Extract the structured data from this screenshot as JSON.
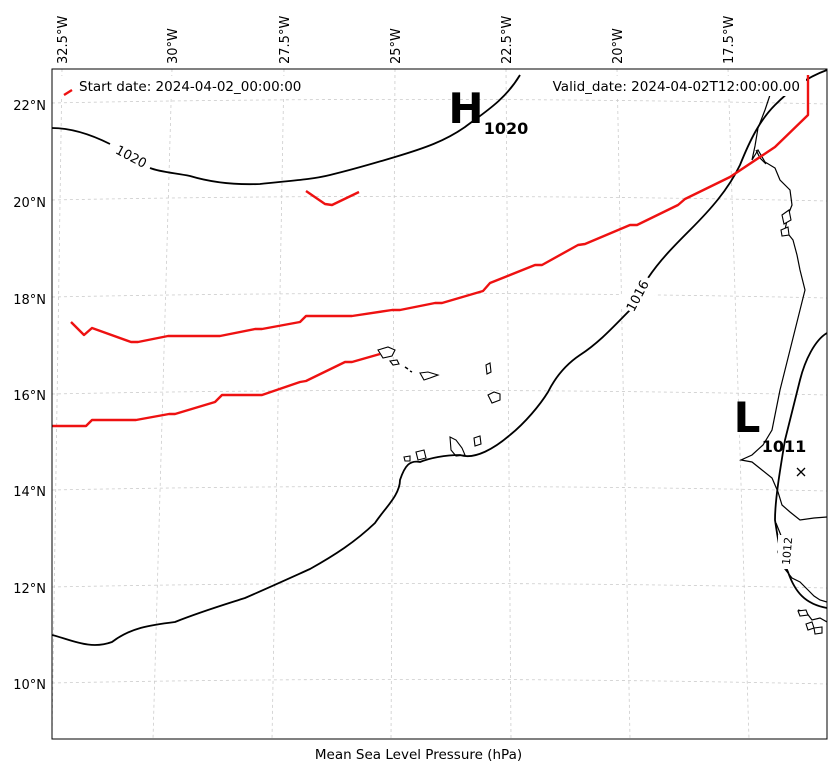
{
  "map": {
    "caption": "Mean Sea Level Pressure (hPa)",
    "start_date": "Start date: 2024-04-02_00:00:00",
    "valid_date": "Valid_date: 2024-04-02T12:00:00.00",
    "longitude_labels": [
      "32.5°W",
      "30°W",
      "27.5°W",
      "25°W",
      "22.5°W",
      "20°W",
      "17.5°W"
    ],
    "latitude_labels": [
      "22°N",
      "20°N",
      "18°N",
      "16°N",
      "14°N",
      "12°N",
      "10°N"
    ],
    "contour_labels": [
      "1020",
      "1016",
      "1012"
    ],
    "high_center": {
      "letter": "H",
      "value": "1020"
    },
    "low_center": {
      "letter": "L",
      "value": "1011"
    },
    "colors": {
      "isobar": "#000000",
      "track": "#ee1111",
      "grid": "#cccccc"
    }
  }
}
